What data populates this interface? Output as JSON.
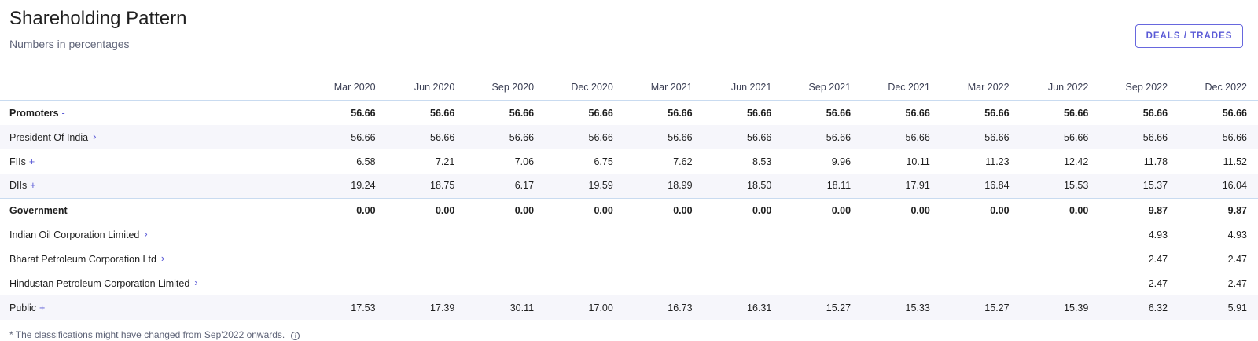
{
  "header": {
    "title": "Shareholding Pattern",
    "subtitle": "Numbers in percentages",
    "deals_button": "DEALS / TRADES"
  },
  "columns": [
    "Mar 2020",
    "Jun 2020",
    "Sep 2020",
    "Dec 2020",
    "Mar 2021",
    "Jun 2021",
    "Sep 2021",
    "Dec 2021",
    "Mar 2022",
    "Jun 2022",
    "Sep 2022",
    "Dec 2022"
  ],
  "rows": [
    {
      "label": "Promoters",
      "toggle": "-",
      "values": [
        "56.66",
        "56.66",
        "56.66",
        "56.66",
        "56.66",
        "56.66",
        "56.66",
        "56.66",
        "56.66",
        "56.66",
        "56.66",
        "56.66"
      ]
    },
    {
      "label": "President Of India",
      "chevron": "›",
      "values": [
        "56.66",
        "56.66",
        "56.66",
        "56.66",
        "56.66",
        "56.66",
        "56.66",
        "56.66",
        "56.66",
        "56.66",
        "56.66",
        "56.66"
      ]
    },
    {
      "label": "FIIs",
      "toggle": "+",
      "values": [
        "6.58",
        "7.21",
        "7.06",
        "6.75",
        "7.62",
        "8.53",
        "9.96",
        "10.11",
        "11.23",
        "12.42",
        "11.78",
        "11.52"
      ]
    },
    {
      "label": "DIIs",
      "toggle": "+",
      "values": [
        "19.24",
        "18.75",
        "6.17",
        "19.59",
        "18.99",
        "18.50",
        "18.11",
        "17.91",
        "16.84",
        "15.53",
        "15.37",
        "16.04"
      ]
    },
    {
      "label": "Government",
      "toggle": "-",
      "values": [
        "0.00",
        "0.00",
        "0.00",
        "0.00",
        "0.00",
        "0.00",
        "0.00",
        "0.00",
        "0.00",
        "0.00",
        "9.87",
        "9.87"
      ]
    },
    {
      "label": "Indian Oil Corporation Limited",
      "chevron": "›",
      "values": [
        "",
        "",
        "",
        "",
        "",
        "",
        "",
        "",
        "",
        "",
        "4.93",
        "4.93"
      ]
    },
    {
      "label": "Bharat Petroleum Corporation Ltd",
      "chevron": "›",
      "values": [
        "",
        "",
        "",
        "",
        "",
        "",
        "",
        "",
        "",
        "",
        "2.47",
        "2.47"
      ]
    },
    {
      "label": "Hindustan Petroleum Corporation Limited",
      "chevron": "›",
      "values": [
        "",
        "",
        "",
        "",
        "",
        "",
        "",
        "",
        "",
        "",
        "2.47",
        "2.47"
      ]
    },
    {
      "label": "Public",
      "toggle": "+",
      "values": [
        "17.53",
        "17.39",
        "30.11",
        "17.00",
        "16.73",
        "16.31",
        "15.27",
        "15.33",
        "15.27",
        "15.39",
        "6.32",
        "5.91"
      ]
    }
  ],
  "footnote": {
    "text": "* The classifications might have changed from Sep'2022 onwards.",
    "icon": "i"
  }
}
